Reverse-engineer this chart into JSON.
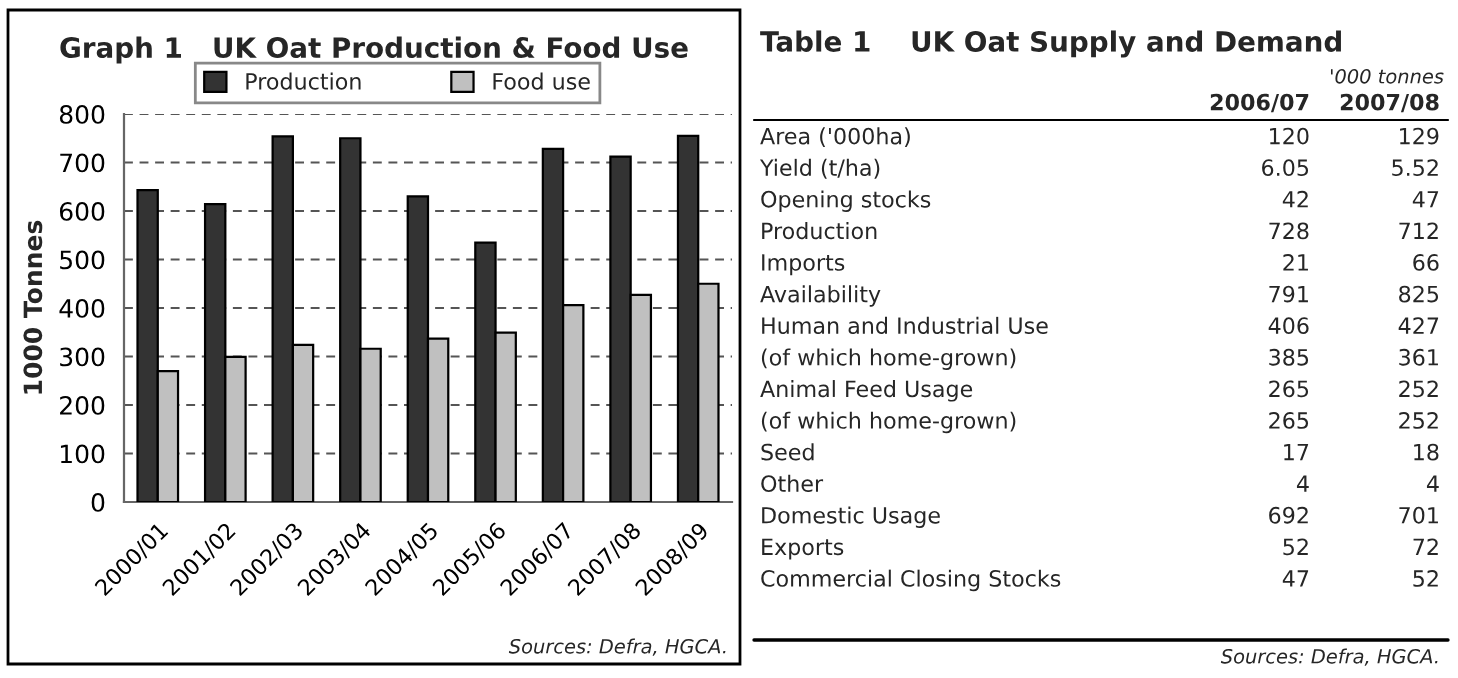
{
  "chart_data": [
    {
      "type": "bar",
      "title": "Graph 1   UK Oat Production & Food Use",
      "ylabel": "1000 Tonnes",
      "categories": [
        "2000/01",
        "2001/02",
        "2002/03",
        "2003/04",
        "2004/05",
        "2005/06",
        "2006/07",
        "2007/08",
        "2008/09"
      ],
      "series": [
        {
          "name": "Production",
          "color": "#333333",
          "values": [
            643,
            614,
            754,
            750,
            630,
            535,
            728,
            712,
            755
          ]
        },
        {
          "name": "Food use",
          "color": "#c0c0c0",
          "values": [
            270,
            299,
            324,
            316,
            337,
            349,
            406,
            427,
            450
          ]
        }
      ],
      "ylim": [
        0,
        800
      ],
      "yticks": [
        0,
        100,
        200,
        300,
        400,
        500,
        600,
        700,
        800
      ],
      "grid": "y",
      "legend": "top",
      "annotations": [
        "Sources: Defra, HGCA."
      ]
    },
    {
      "type": "other",
      "title": "Table 1    UK Oat Supply and Demand",
      "subtitle": "'000 tonnes",
      "categories": [
        "2006/07",
        "2007/08"
      ],
      "annotations": [
        "Area ('000ha)",
        "120",
        "129",
        "Yield (t/ha)",
        "6.05",
        "5.52",
        "Opening stocks",
        "42",
        "47",
        "Production",
        "728",
        "712",
        "Imports",
        "21",
        "66",
        "Availability",
        "791",
        "825",
        "Human and Industrial Use",
        "406",
        "427",
        "(of which home-grown)",
        "385",
        "361",
        "Animal Feed Usage",
        "265",
        "252",
        "(of which home-grown)",
        "265",
        "252",
        "Seed",
        "17",
        "18",
        "Other",
        "4",
        "4",
        "Domestic Usage",
        "692",
        "701",
        "Exports",
        "52",
        "72",
        "Commercial Closing Stocks",
        "47",
        "52",
        "Sources: Defra, HGCA."
      ]
    }
  ]
}
